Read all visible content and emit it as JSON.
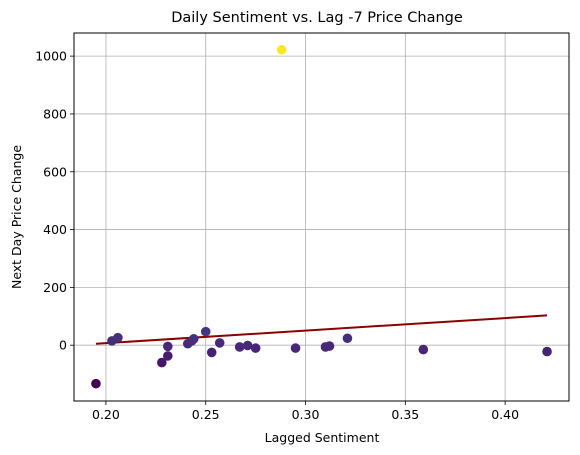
{
  "chart_data": {
    "type": "scatter",
    "title": "Daily Sentiment vs. Lag -7 Price Change",
    "xlabel": "Lagged Sentiment",
    "ylabel": "Next Day Price Change",
    "xlim": [
      0.184,
      0.432
    ],
    "ylim": [
      -193,
      1080
    ],
    "grid": true,
    "colormap": "viridis",
    "xticks": [
      0.2,
      0.25,
      0.3,
      0.35,
      0.4
    ],
    "xtick_labels": [
      "0.20",
      "0.25",
      "0.30",
      "0.35",
      "0.40"
    ],
    "yticks": [
      0,
      200,
      400,
      600,
      800,
      1000
    ],
    "ytick_labels": [
      "0",
      "200",
      "400",
      "600",
      "800",
      "1000"
    ],
    "points": [
      {
        "x": 0.195,
        "y": -133
      },
      {
        "x": 0.203,
        "y": 15
      },
      {
        "x": 0.206,
        "y": 26
      },
      {
        "x": 0.228,
        "y": -60
      },
      {
        "x": 0.231,
        "y": -4
      },
      {
        "x": 0.231,
        "y": -37
      },
      {
        "x": 0.241,
        "y": 5
      },
      {
        "x": 0.243,
        "y": 15
      },
      {
        "x": 0.244,
        "y": 22
      },
      {
        "x": 0.25,
        "y": 47
      },
      {
        "x": 0.253,
        "y": -25
      },
      {
        "x": 0.257,
        "y": 8
      },
      {
        "x": 0.267,
        "y": -6
      },
      {
        "x": 0.271,
        "y": -1
      },
      {
        "x": 0.275,
        "y": -10
      },
      {
        "x": 0.288,
        "y": 1022
      },
      {
        "x": 0.295,
        "y": -10
      },
      {
        "x": 0.31,
        "y": -6
      },
      {
        "x": 0.312,
        "y": -3
      },
      {
        "x": 0.321,
        "y": 24
      },
      {
        "x": 0.359,
        "y": -15
      },
      {
        "x": 0.421,
        "y": -22
      }
    ],
    "trendline": {
      "x": [
        0.195,
        0.421
      ],
      "y": [
        5,
        103
      ],
      "color": "#8b0000"
    }
  }
}
